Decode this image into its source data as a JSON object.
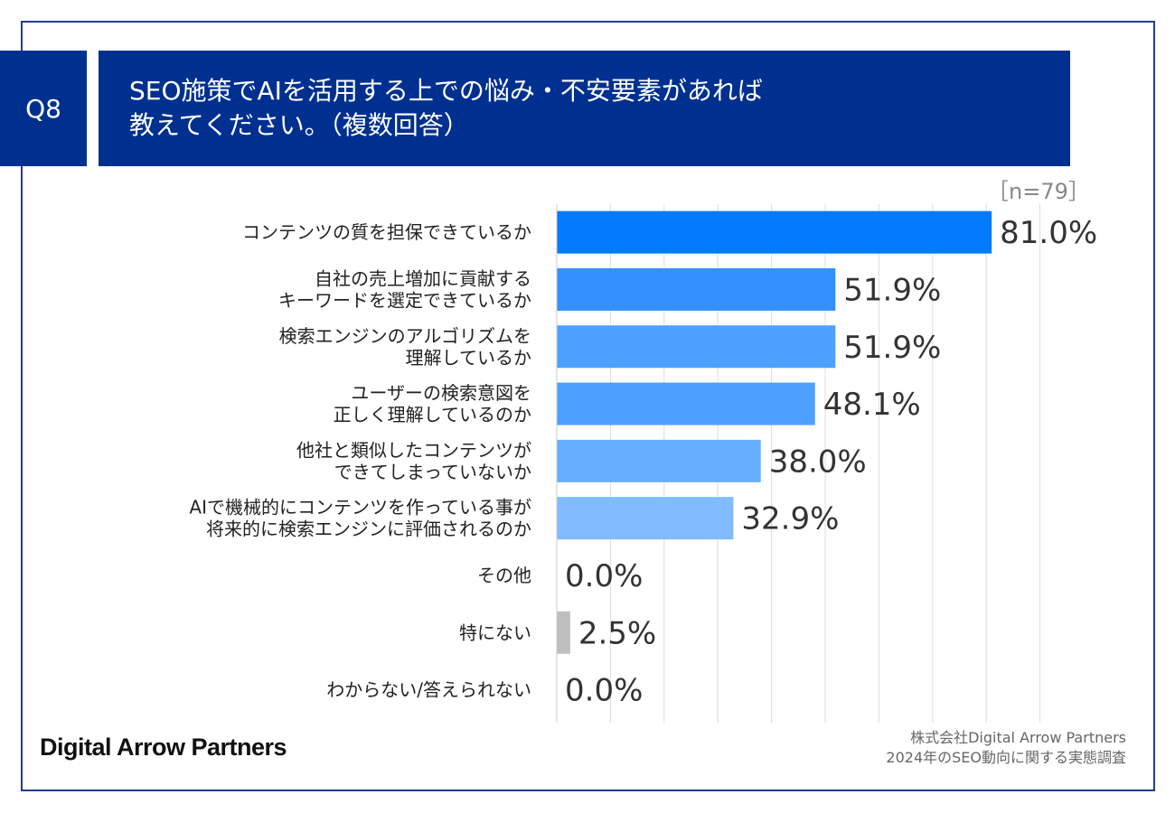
{
  "header": {
    "question_no": "Q8",
    "title": "SEO施策でAIを活用する上での悩み・不安要素があれば\n教えてください。（複数回答）"
  },
  "sample": "［n=79］",
  "chart_data": {
    "type": "bar",
    "orientation": "horizontal",
    "categories": [
      [
        "コンテンツの質を担保できているか"
      ],
      [
        "自社の売上増加に貢献する",
        "キーワードを選定できているか"
      ],
      [
        "検索エンジンのアルゴリズムを",
        "理解しているか"
      ],
      [
        "ユーザーの検索意図を",
        "正しく理解しているのか"
      ],
      [
        "他社と類似したコンテンツが",
        "できてしまっていないか"
      ],
      [
        "AIで機械的にコンテンツを作っている事が",
        "将来的に検索エンジンに評価されるのか"
      ],
      [
        "その他"
      ],
      [
        "特にない"
      ],
      [
        "わからない/答えられない"
      ]
    ],
    "values": [
      81.0,
      51.9,
      51.9,
      48.1,
      38.0,
      32.9,
      0.0,
      2.5,
      0.0
    ],
    "value_labels": [
      "81.0%",
      "51.9%",
      "51.9%",
      "48.1%",
      "38.0%",
      "32.9%",
      "0.0%",
      "2.5%",
      "0.0%"
    ],
    "colors": [
      "#037bff",
      "#3391ff",
      "#4da0ff",
      "#4da0ff",
      "#66aeff",
      "#80bcff",
      "#bfbfbf",
      "#bfbfbf",
      "#bfbfbf"
    ],
    "xlim": [
      0,
      90
    ],
    "grid": true
  },
  "footer": {
    "logo": "Digital Arrow Partners",
    "source_line1": "株式会社Digital Arrow Partners",
    "source_line2": "2024年のSEO動向に関する実態調査"
  },
  "colors": {
    "header": "#00308f",
    "frame": "#1f3f8f"
  }
}
